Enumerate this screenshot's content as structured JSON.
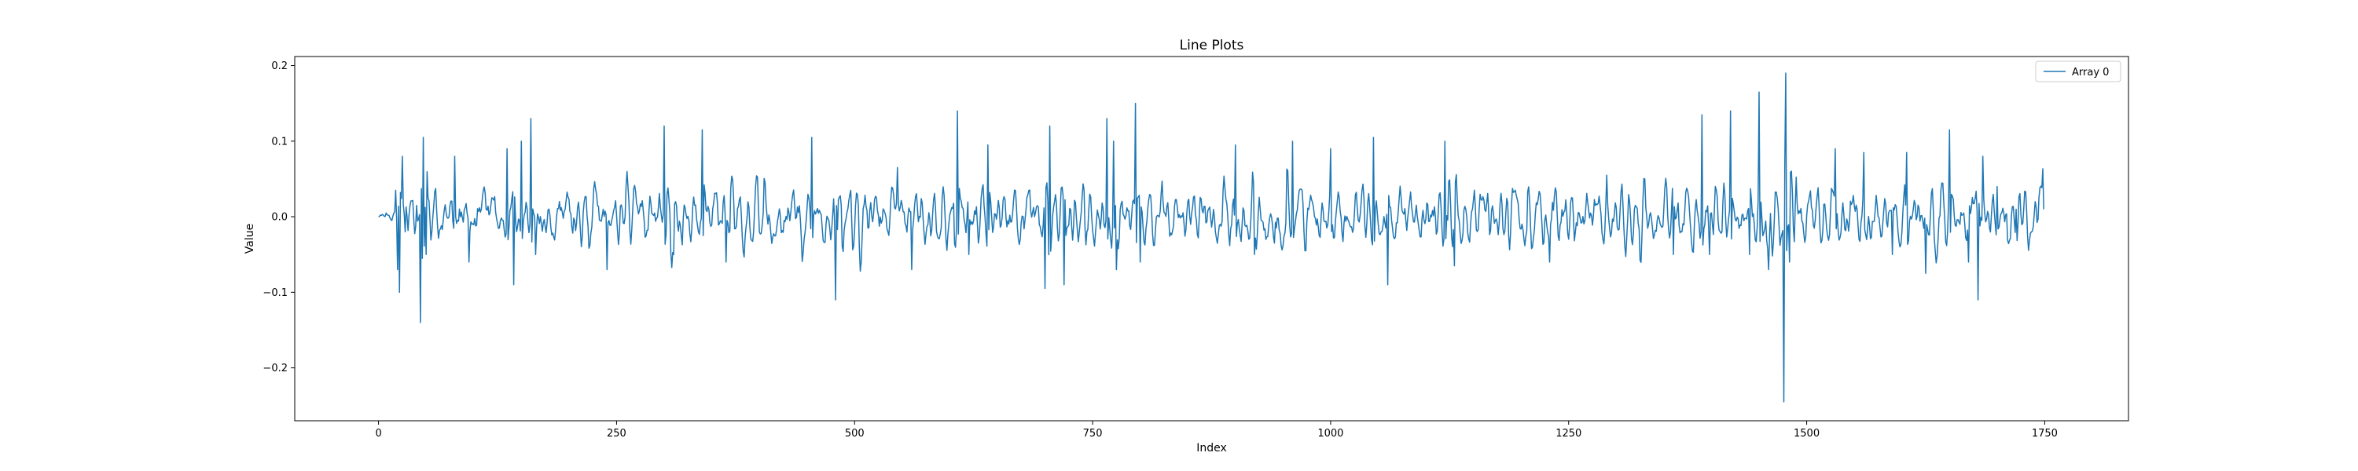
{
  "chart_data": {
    "type": "line",
    "title": "Line Plots",
    "xlabel": "Index",
    "ylabel": "Value",
    "xlim": [
      -88,
      1838
    ],
    "ylim": [
      -0.27,
      0.212
    ],
    "xticks": [
      0,
      250,
      500,
      750,
      1000,
      1250,
      1500,
      1750
    ],
    "xtick_labels": [
      "0",
      "250",
      "500",
      "750",
      "1000",
      "1250",
      "1500",
      "1750"
    ],
    "yticks": [
      -0.2,
      -0.1,
      0.0,
      0.1,
      0.2
    ],
    "ytick_labels": [
      "−0.2",
      "−0.1",
      "0.0",
      "0.1",
      "0.2"
    ],
    "grid": false,
    "legend_position": "top-right",
    "n_points": 1750,
    "series": [
      {
        "name": "Array 0",
        "color": "#1f77b4",
        "spikes": [
          {
            "x": 0,
            "y": 0.0
          },
          {
            "x": 8,
            "y": 0.005
          },
          {
            "x": 14,
            "y": -0.005
          },
          {
            "x": 18,
            "y": 0.035
          },
          {
            "x": 20,
            "y": -0.07
          },
          {
            "x": 22,
            "y": -0.1
          },
          {
            "x": 25,
            "y": 0.08
          },
          {
            "x": 28,
            "y": -0.02
          },
          {
            "x": 40,
            "y": 0.015
          },
          {
            "x": 44,
            "y": -0.14
          },
          {
            "x": 47,
            "y": 0.105
          },
          {
            "x": 50,
            "y": -0.05
          },
          {
            "x": 80,
            "y": 0.08
          },
          {
            "x": 95,
            "y": -0.06
          },
          {
            "x": 135,
            "y": 0.09
          },
          {
            "x": 142,
            "y": -0.09
          },
          {
            "x": 150,
            "y": 0.1
          },
          {
            "x": 160,
            "y": 0.13
          },
          {
            "x": 165,
            "y": -0.05
          },
          {
            "x": 240,
            "y": -0.07
          },
          {
            "x": 300,
            "y": 0.12
          },
          {
            "x": 310,
            "y": -0.05
          },
          {
            "x": 340,
            "y": 0.115
          },
          {
            "x": 365,
            "y": -0.06
          },
          {
            "x": 455,
            "y": 0.105
          },
          {
            "x": 480,
            "y": -0.11
          },
          {
            "x": 545,
            "y": 0.065
          },
          {
            "x": 560,
            "y": -0.07
          },
          {
            "x": 608,
            "y": 0.14
          },
          {
            "x": 620,
            "y": -0.05
          },
          {
            "x": 640,
            "y": 0.095
          },
          {
            "x": 700,
            "y": -0.095
          },
          {
            "x": 705,
            "y": 0.12
          },
          {
            "x": 720,
            "y": -0.09
          },
          {
            "x": 765,
            "y": 0.13
          },
          {
            "x": 772,
            "y": 0.1
          },
          {
            "x": 775,
            "y": -0.07
          },
          {
            "x": 795,
            "y": 0.15
          },
          {
            "x": 800,
            "y": -0.06
          },
          {
            "x": 900,
            "y": 0.095
          },
          {
            "x": 920,
            "y": -0.05
          },
          {
            "x": 960,
            "y": 0.1
          },
          {
            "x": 1000,
            "y": 0.09
          },
          {
            "x": 1045,
            "y": 0.105
          },
          {
            "x": 1060,
            "y": -0.09
          },
          {
            "x": 1120,
            "y": 0.1
          },
          {
            "x": 1130,
            "y": -0.065
          },
          {
            "x": 1230,
            "y": -0.06
          },
          {
            "x": 1290,
            "y": 0.055
          },
          {
            "x": 1360,
            "y": -0.05
          },
          {
            "x": 1390,
            "y": 0.135
          },
          {
            "x": 1398,
            "y": -0.05
          },
          {
            "x": 1420,
            "y": 0.14
          },
          {
            "x": 1440,
            "y": -0.05
          },
          {
            "x": 1450,
            "y": 0.165
          },
          {
            "x": 1460,
            "y": -0.07
          },
          {
            "x": 1476,
            "y": -0.245
          },
          {
            "x": 1478,
            "y": 0.19
          },
          {
            "x": 1482,
            "y": -0.06
          },
          {
            "x": 1530,
            "y": 0.09
          },
          {
            "x": 1560,
            "y": 0.085
          },
          {
            "x": 1590,
            "y": -0.05
          },
          {
            "x": 1605,
            "y": 0.085
          },
          {
            "x": 1625,
            "y": -0.075
          },
          {
            "x": 1650,
            "y": 0.115
          },
          {
            "x": 1670,
            "y": -0.06
          },
          {
            "x": 1680,
            "y": -0.11
          },
          {
            "x": 1685,
            "y": 0.08
          },
          {
            "x": 1700,
            "y": 0.04
          },
          {
            "x": 1720,
            "y": 0.01
          },
          {
            "x": 1740,
            "y": 0.02
          },
          {
            "x": 1749,
            "y": 0.01
          }
        ]
      }
    ]
  }
}
